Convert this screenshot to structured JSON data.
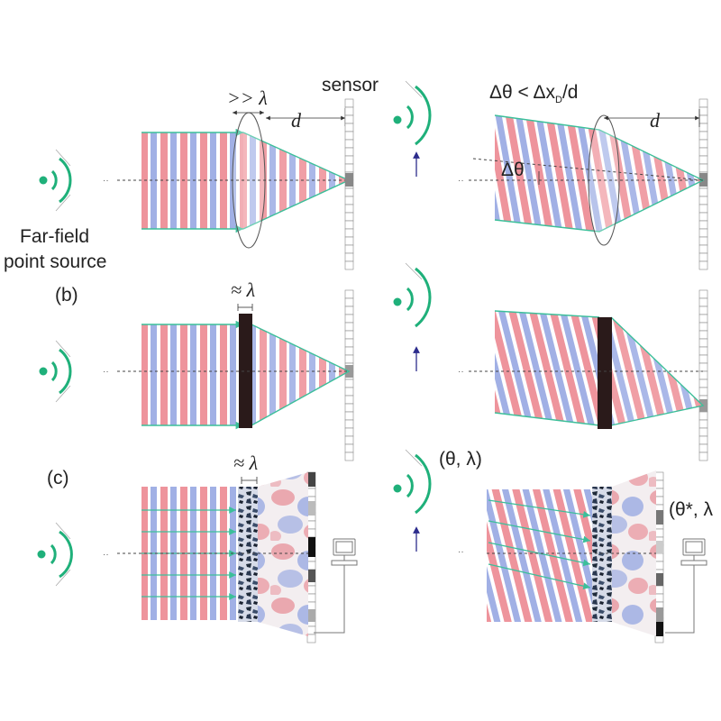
{
  "labels": {
    "sensor": "sensor",
    "gt_lambda": ">> λ",
    "d_left": "d",
    "d_right": "d",
    "delta_theta_condition": "Δθ < Δx",
    "delta_theta_condition_sub": "D",
    "delta_theta_condition_tail": "/d",
    "delta_theta": "Δθ",
    "far_field_line1": "Far-field",
    "far_field_line2": "point source",
    "panel_b": "(b)",
    "panel_c": "(c)",
    "approx_lambda_b": "≈ λ",
    "approx_lambda_c": "≈ λ",
    "theta_lambda": "(θ, λ)",
    "theta_star_lambda": "(θ*, λ"
  },
  "colors": {
    "wave_red": "#e8707a",
    "wave_blue": "#6f86d8",
    "source_green": "#1fb07a",
    "ray_green": "#3cbf9a",
    "arrow_blue": "#2c2c8c",
    "element_dark": "#2a1a1a",
    "sensor_stroke": "#888888"
  }
}
